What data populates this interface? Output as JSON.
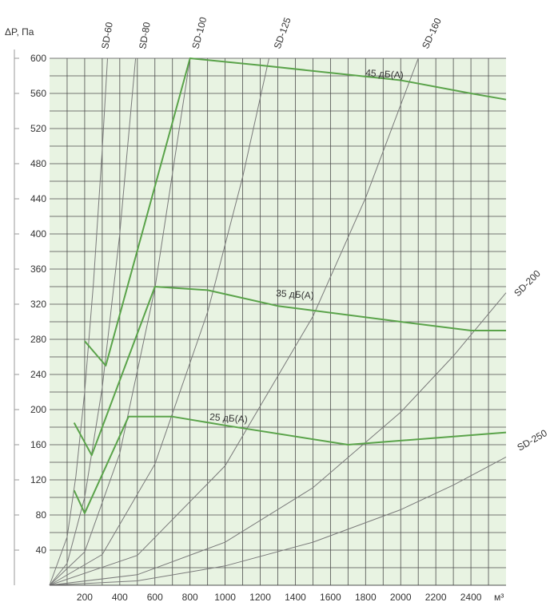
{
  "chart_data": {
    "type": "line",
    "title": "",
    "ylabel": "ΔP, Па",
    "xlabel": "м³",
    "xlim": [
      0,
      2600
    ],
    "ylim": [
      0,
      600
    ],
    "x_ticks": [
      200,
      400,
      600,
      800,
      1000,
      1200,
      1400,
      1600,
      1800,
      2000,
      2200,
      2400
    ],
    "y_ticks": [
      40,
      80,
      120,
      160,
      200,
      240,
      280,
      320,
      360,
      400,
      440,
      480,
      520,
      560,
      600
    ],
    "grid": true,
    "colors": {
      "background": "#e8f3e2",
      "grid": "#4d4d4d",
      "characteristic_curves": "#7a7a7a",
      "noise_lines": "#5aa34a"
    },
    "characteristic_curves": [
      {
        "name": "SD-60",
        "x_at_max": 330,
        "points": [
          [
            0,
            0
          ],
          [
            100,
            55
          ],
          [
            150,
            124
          ],
          [
            200,
            220
          ],
          [
            250,
            344
          ],
          [
            300,
            496
          ],
          [
            330,
            600
          ]
        ]
      },
      {
        "name": "SD-80",
        "x_at_max": 490,
        "points": [
          [
            0,
            0
          ],
          [
            100,
            25
          ],
          [
            200,
            100
          ],
          [
            300,
            225
          ],
          [
            400,
            400
          ],
          [
            490,
            600
          ]
        ]
      },
      {
        "name": "SD-100",
        "x_at_max": 800,
        "points": [
          [
            0,
            0
          ],
          [
            200,
            38
          ],
          [
            400,
            150
          ],
          [
            600,
            338
          ],
          [
            800,
            600
          ]
        ]
      },
      {
        "name": "SD-125",
        "x_at_max": 1250,
        "points": [
          [
            0,
            0
          ],
          [
            300,
            35
          ],
          [
            600,
            138
          ],
          [
            900,
            311
          ],
          [
            1100,
            465
          ],
          [
            1250,
            600
          ]
        ]
      },
      {
        "name": "SD-160",
        "x_at_max": 2100,
        "points": [
          [
            0,
            0
          ],
          [
            500,
            34
          ],
          [
            1000,
            136
          ],
          [
            1500,
            306
          ],
          [
            1800,
            441
          ],
          [
            2100,
            600
          ]
        ]
      },
      {
        "name": "SD-200",
        "x_at_max": 2600,
        "y_at_max": 333,
        "points": [
          [
            0,
            0
          ],
          [
            500,
            12
          ],
          [
            1000,
            49
          ],
          [
            1500,
            111
          ],
          [
            2000,
            197
          ],
          [
            2300,
            261
          ],
          [
            2600,
            333
          ]
        ]
      },
      {
        "name": "SD-250",
        "x_at_max": 2600,
        "y_at_max": 146,
        "points": [
          [
            0,
            0
          ],
          [
            500,
            5
          ],
          [
            1000,
            22
          ],
          [
            1500,
            49
          ],
          [
            2000,
            86
          ],
          [
            2300,
            114
          ],
          [
            2600,
            146
          ]
        ]
      }
    ],
    "noise_lines": [
      {
        "name": "25 дБ(А)",
        "points": [
          [
            140,
            108
          ],
          [
            200,
            82
          ],
          [
            450,
            192
          ],
          [
            700,
            192
          ],
          [
            1000,
            182
          ],
          [
            1700,
            160
          ],
          [
            2600,
            174
          ]
        ]
      },
      {
        "name": "35 дБ(А)",
        "points": [
          [
            140,
            185
          ],
          [
            240,
            148
          ],
          [
            600,
            340
          ],
          [
            900,
            336
          ],
          [
            1300,
            318
          ],
          [
            2000,
            300
          ],
          [
            2400,
            290
          ],
          [
            2600,
            290
          ]
        ]
      },
      {
        "name": "45 дБ(А)",
        "points": [
          [
            200,
            278
          ],
          [
            320,
            250
          ],
          [
            800,
            600
          ],
          [
            1200,
            592
          ],
          [
            2000,
            575
          ],
          [
            2400,
            560
          ],
          [
            2600,
            553
          ]
        ]
      }
    ]
  }
}
